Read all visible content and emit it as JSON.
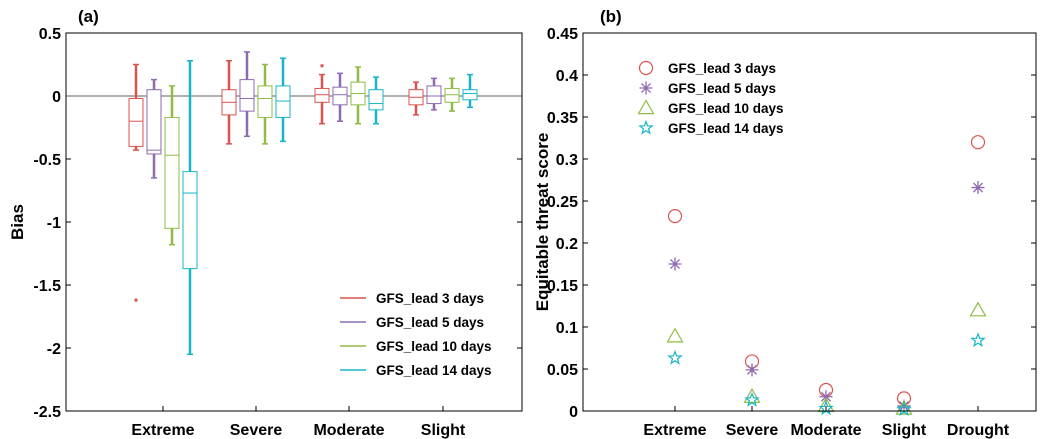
{
  "chart_data": [
    {
      "type": "box",
      "panel_label": "(a)",
      "ylabel": "Bias",
      "ylim": [
        -2.5,
        0.5
      ],
      "yticks": [
        "-2.5",
        "-2",
        "-1.5",
        "-1",
        "-0.5",
        "0",
        "0.5"
      ],
      "categories": [
        "Extreme",
        "Severe",
        "Moderate",
        "Slight"
      ],
      "reference_line": 0,
      "legend_position": "bottom-right",
      "series": [
        {
          "name": "GFS_lead 3 days",
          "color": "#d9534f",
          "stats": [
            {
              "whisker_low": -0.43,
              "q1": -0.4,
              "median": -0.2,
              "q3": -0.02,
              "whisker_high": 0.25,
              "outliers": [
                -1.62
              ]
            },
            {
              "whisker_low": -0.38,
              "q1": -0.15,
              "median": -0.05,
              "q3": 0.05,
              "whisker_high": 0.28,
              "outliers": []
            },
            {
              "whisker_low": -0.22,
              "q1": -0.05,
              "median": 0.01,
              "q3": 0.06,
              "whisker_high": 0.17,
              "outliers": [
                0.24
              ]
            },
            {
              "whisker_low": -0.15,
              "q1": -0.07,
              "median": -0.01,
              "q3": 0.05,
              "whisker_high": 0.11,
              "outliers": []
            }
          ]
        },
        {
          "name": "GFS_lead 5 days",
          "color": "#8e6bb0",
          "stats": [
            {
              "whisker_low": -0.65,
              "q1": -0.46,
              "median": -0.43,
              "q3": 0.05,
              "whisker_high": 0.13,
              "outliers": []
            },
            {
              "whisker_low": -0.32,
              "q1": -0.12,
              "median": -0.02,
              "q3": 0.13,
              "whisker_high": 0.35,
              "outliers": []
            },
            {
              "whisker_low": -0.2,
              "q1": -0.07,
              "median": 0.01,
              "q3": 0.07,
              "whisker_high": 0.18,
              "outliers": []
            },
            {
              "whisker_low": -0.11,
              "q1": -0.06,
              "median": 0.0,
              "q3": 0.08,
              "whisker_high": 0.14,
              "outliers": []
            }
          ]
        },
        {
          "name": "GFS_lead 10 days",
          "color": "#8fbc45",
          "stats": [
            {
              "whisker_low": -1.18,
              "q1": -1.05,
              "median": -0.47,
              "q3": -0.17,
              "whisker_high": 0.08,
              "outliers": []
            },
            {
              "whisker_low": -0.38,
              "q1": -0.17,
              "median": -0.02,
              "q3": 0.08,
              "whisker_high": 0.25,
              "outliers": []
            },
            {
              "whisker_low": -0.22,
              "q1": -0.07,
              "median": 0.02,
              "q3": 0.11,
              "whisker_high": 0.23,
              "outliers": []
            },
            {
              "whisker_low": -0.12,
              "q1": -0.05,
              "median": 0.01,
              "q3": 0.06,
              "whisker_high": 0.14,
              "outliers": []
            }
          ]
        },
        {
          "name": "GFS_lead 14 days",
          "color": "#17b5c9",
          "stats": [
            {
              "whisker_low": -2.05,
              "q1": -1.37,
              "median": -0.77,
              "q3": -0.6,
              "whisker_high": 0.28,
              "outliers": []
            },
            {
              "whisker_low": -0.36,
              "q1": -0.17,
              "median": -0.04,
              "q3": 0.08,
              "whisker_high": 0.3,
              "outliers": []
            },
            {
              "whisker_low": -0.22,
              "q1": -0.11,
              "median": -0.06,
              "q3": 0.05,
              "whisker_high": 0.15,
              "outliers": []
            },
            {
              "whisker_low": -0.09,
              "q1": -0.03,
              "median": 0.02,
              "q3": 0.05,
              "whisker_high": 0.17,
              "outliers": []
            }
          ]
        }
      ]
    },
    {
      "type": "scatter",
      "panel_label": "(b)",
      "ylabel": "Equitable threat score",
      "ylim": [
        0,
        0.45
      ],
      "yticks": [
        "0",
        "0.05",
        "0.1",
        "0.15",
        "0.2",
        "0.25",
        "0.3",
        "0.35",
        "0.4",
        "0.45"
      ],
      "categories": [
        "Extreme",
        "Severe",
        "Moderate",
        "Slight",
        "Drought"
      ],
      "legend_position": "top-left",
      "series": [
        {
          "name": "GFS_lead 3 days",
          "color": "#d9534f",
          "marker": "circle",
          "values": [
            0.232,
            0.059,
            0.025,
            0.015,
            0.32
          ]
        },
        {
          "name": "GFS_lead 5 days",
          "color": "#8e6bb0",
          "marker": "asterisk",
          "values": [
            0.175,
            0.049,
            0.017,
            0.006,
            0.266
          ]
        },
        {
          "name": "GFS_lead 10 days",
          "color": "#8fbc45",
          "marker": "triangle",
          "values": [
            0.089,
            0.017,
            0.006,
            0.003,
            0.12
          ]
        },
        {
          "name": "GFS_lead 14 days",
          "color": "#17b5c9",
          "marker": "star",
          "values": [
            0.063,
            0.013,
            0.003,
            0.002,
            0.084
          ]
        }
      ]
    }
  ]
}
